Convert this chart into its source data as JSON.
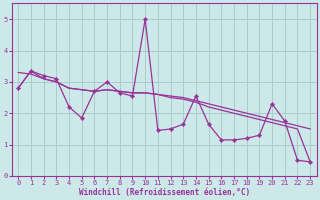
{
  "xlabel": "Windchill (Refroidissement éolien,°C)",
  "bg_color": "#cce8e8",
  "grid_color": "#aacccc",
  "line_color": "#993399",
  "xlim": [
    -0.5,
    23.5
  ],
  "ylim": [
    0,
    5.5
  ],
  "yticks": [
    0,
    1,
    2,
    3,
    4,
    5
  ],
  "xticks": [
    0,
    1,
    2,
    3,
    4,
    5,
    6,
    7,
    8,
    9,
    10,
    11,
    12,
    13,
    14,
    15,
    16,
    17,
    18,
    19,
    20,
    21,
    22,
    23
  ],
  "s1_x": [
    0,
    1,
    2,
    3,
    4,
    5,
    6,
    7,
    8,
    9,
    10,
    11,
    12,
    13,
    14,
    15,
    16,
    17,
    18,
    19,
    20,
    21,
    22,
    23
  ],
  "s1_y": [
    2.8,
    3.35,
    3.2,
    3.1,
    2.2,
    1.85,
    2.7,
    3.0,
    2.65,
    2.55,
    5.0,
    1.45,
    1.5,
    1.65,
    2.55,
    1.65,
    1.15,
    1.15,
    1.2,
    1.3,
    2.3,
    1.75,
    0.5,
    0.45
  ],
  "s2_x": [
    0,
    1,
    2,
    3,
    4,
    5,
    6,
    7,
    8,
    9,
    10,
    11,
    12,
    13,
    14,
    15,
    16,
    17,
    18,
    19,
    20,
    21,
    22,
    23
  ],
  "s2_y": [
    3.3,
    3.25,
    3.1,
    3.0,
    2.8,
    2.75,
    2.7,
    2.75,
    2.7,
    2.65,
    2.65,
    2.6,
    2.55,
    2.5,
    2.4,
    2.3,
    2.2,
    2.1,
    2.0,
    1.9,
    1.8,
    1.7,
    1.6,
    1.5
  ],
  "s3_x": [
    0,
    1,
    2,
    3,
    4,
    5,
    6,
    7,
    8,
    9,
    10,
    11,
    12,
    13,
    14,
    15,
    16,
    17,
    18,
    19,
    20,
    21,
    22,
    23
  ],
  "s3_y": [
    2.8,
    3.35,
    3.1,
    3.0,
    2.8,
    2.75,
    2.7,
    2.75,
    2.7,
    2.65,
    2.65,
    2.6,
    2.5,
    2.45,
    2.35,
    2.2,
    2.1,
    2.0,
    1.9,
    1.8,
    1.7,
    1.6,
    1.5,
    0.45
  ],
  "xlabel_fontsize": 5.5,
  "tick_fontsize": 5.0
}
